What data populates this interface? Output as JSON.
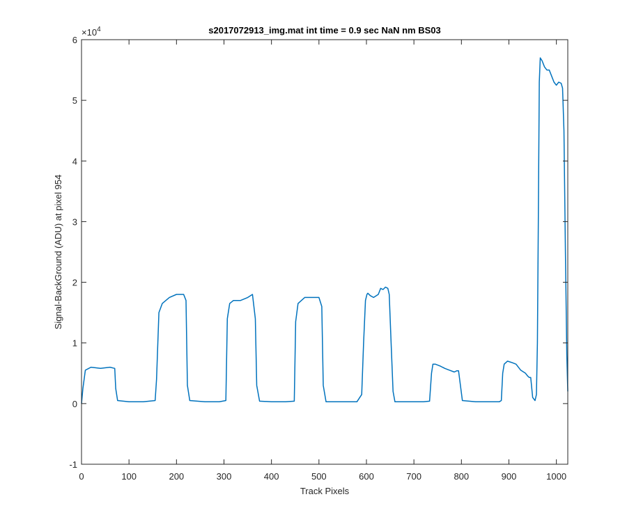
{
  "chart_data": {
    "type": "line",
    "title": "s2017072913_img.mat int time = 0.9 sec  NaN nm BS03",
    "xlabel": "Track Pixels",
    "ylabel": "Signal-BackGround (ADU) at pixel 954",
    "xlim": [
      0,
      1024
    ],
    "ylim": [
      -10000,
      60000
    ],
    "y_exponent_label": "×10",
    "y_exponent_power": "4",
    "xticks": [
      0,
      100,
      200,
      300,
      400,
      500,
      600,
      700,
      800,
      900,
      1000
    ],
    "xtick_labels": [
      "0",
      "100",
      "200",
      "300",
      "400",
      "500",
      "600",
      "700",
      "800",
      "900",
      "1000"
    ],
    "yticks": [
      -10000,
      0,
      10000,
      20000,
      30000,
      40000,
      50000,
      60000
    ],
    "ytick_labels": [
      "-1",
      "0",
      "1",
      "2",
      "3",
      "4",
      "5",
      "6"
    ],
    "grid": false,
    "colors": {
      "line": "#0072BD",
      "axes": "#262626"
    },
    "series": [
      {
        "x": [
          0,
          3,
          8,
          20,
          40,
          60,
          70,
          72,
          76,
          100,
          130,
          155,
          158,
          163,
          170,
          185,
          200,
          215,
          220,
          223,
          228,
          260,
          290,
          304,
          307,
          312,
          320,
          335,
          350,
          360,
          366,
          369,
          375,
          400,
          430,
          448,
          451,
          456,
          470,
          485,
          500,
          506,
          509,
          515,
          550,
          580,
          590,
          594,
          598,
          601,
          603,
          608,
          615,
          625,
          630,
          635,
          640,
          645,
          648,
          652,
          656,
          660,
          690,
          720,
          733,
          737,
          740,
          745,
          755,
          765,
          775,
          785,
          790,
          794,
          798,
          802,
          830,
          860,
          880,
          884,
          887,
          890,
          897,
          905,
          915,
          925,
          935,
          940,
          943,
          946,
          950,
          955,
          958,
          960,
          962,
          964,
          966,
          970,
          975,
          980,
          985,
          990,
          995,
          1000,
          1005,
          1010,
          1013,
          1016,
          1019,
          1022,
          1024
        ],
        "y": [
          0,
          2500,
          5500,
          6000,
          5800,
          6000,
          5800,
          2500,
          500,
          300,
          300,
          500,
          4000,
          15000,
          16500,
          17500,
          18000,
          18000,
          17000,
          3000,
          500,
          300,
          300,
          500,
          14000,
          16500,
          17000,
          17000,
          17500,
          18000,
          14000,
          3000,
          400,
          300,
          300,
          400,
          13500,
          16500,
          17500,
          17500,
          17500,
          16000,
          3000,
          300,
          300,
          300,
          1500,
          10000,
          17000,
          18000,
          18200,
          17800,
          17500,
          18000,
          19000,
          18800,
          19200,
          19000,
          18000,
          10000,
          2000,
          300,
          300,
          300,
          400,
          5000,
          6500,
          6500,
          6200,
          5800,
          5500,
          5200,
          5400,
          5400,
          3000,
          500,
          300,
          300,
          300,
          500,
          5000,
          6500,
          7000,
          6800,
          6500,
          5500,
          5000,
          4500,
          4300,
          4300,
          1000,
          500,
          1500,
          10000,
          30000,
          53000,
          57000,
          56500,
          55500,
          55000,
          55000,
          54000,
          53000,
          52500,
          53000,
          52800,
          52000,
          45000,
          25000,
          8000,
          2000
        ]
      }
    ]
  }
}
